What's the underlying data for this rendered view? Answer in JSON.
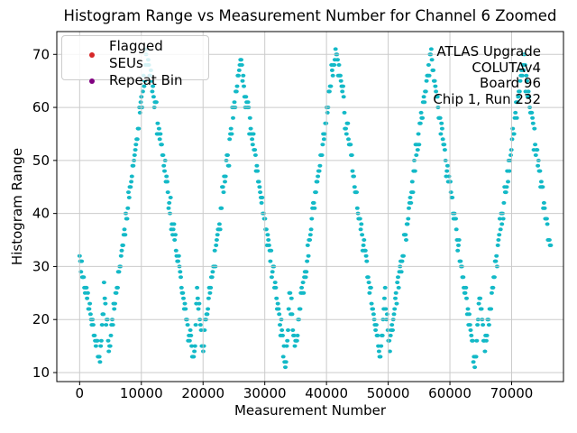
{
  "chart_data": {
    "type": "scatter",
    "title": "Histogram Range vs Measurement Number for Channel 6 Zoomed",
    "xlabel": "Measurement Number",
    "ylabel": "Histogram Range",
    "xlim": [
      -3700,
      78400
    ],
    "ylim": [
      8.3,
      74.3
    ],
    "x_ticks": [
      0,
      10000,
      20000,
      30000,
      40000,
      50000,
      60000,
      70000
    ],
    "y_ticks": [
      10,
      20,
      30,
      40,
      50,
      60,
      70
    ],
    "grid": true,
    "grid_above_points": true,
    "legend": {
      "position": "upper-left",
      "entries": [
        {
          "label": "Flagged SEUs",
          "color": "#d62728",
          "points": []
        },
        {
          "label": "Repeat Bin",
          "color": "#800080",
          "points": []
        }
      ]
    },
    "annotation": {
      "align": "right",
      "lines": [
        "ATLAS Upgrade",
        "COLUTAv4",
        "Board 96",
        "Chip 1, Run 232"
      ]
    },
    "series": [
      {
        "name": "histogram-range-per-measurement",
        "marker_color": "#13b9c7",
        "marker_rx_px": 2.5,
        "marker_ry_px": 2.0,
        "values_quantized_to_integers": true,
        "value_min": 11,
        "value_max": 71,
        "noise_sigma": 1.1,
        "sample_step": 110,
        "x_start": 0,
        "x_end": 76400,
        "envelope_vertices": [
          [
            0,
            32
          ],
          [
            3300,
            12
          ],
          [
            4000,
            25
          ],
          [
            4800,
            15
          ],
          [
            11000,
            70
          ],
          [
            18400,
            12
          ],
          [
            19100,
            25
          ],
          [
            19900,
            15
          ],
          [
            26100,
            69
          ],
          [
            33400,
            12
          ],
          [
            34100,
            25
          ],
          [
            34900,
            15
          ],
          [
            41500,
            71
          ],
          [
            48700,
            12
          ],
          [
            49400,
            25
          ],
          [
            50200,
            15
          ],
          [
            56900,
            70
          ],
          [
            64100,
            12
          ],
          [
            64800,
            25
          ],
          [
            65600,
            15
          ],
          [
            71900,
            69
          ],
          [
            76400,
            32
          ]
        ]
      }
    ],
    "colors": {
      "background": "#ffffff",
      "grid": "#c2c2c2",
      "spine": "#000000",
      "text": "#000000"
    }
  }
}
